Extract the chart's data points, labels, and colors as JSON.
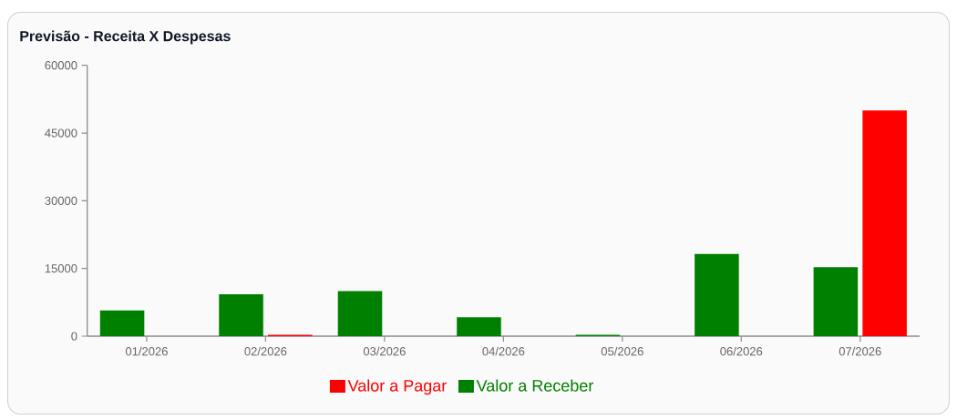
{
  "chart_data": {
    "type": "bar",
    "title": "Previsão - Receita X Despesas",
    "categories": [
      "01/2026",
      "02/2026",
      "03/2026",
      "04/2026",
      "05/2026",
      "06/2026",
      "07/2026"
    ],
    "series": [
      {
        "name": "Valor a Receber",
        "color": "#008000",
        "values": [
          5700,
          9300,
          10000,
          4200,
          300,
          18200,
          15300
        ]
      },
      {
        "name": "Valor a Pagar",
        "color": "#ff0000",
        "values": [
          0,
          300,
          0,
          0,
          0,
          0,
          50000
        ]
      }
    ],
    "ylim": [
      0,
      60000
    ],
    "yticks": [
      0,
      15000,
      30000,
      45000,
      60000
    ],
    "legend": "bottom"
  }
}
